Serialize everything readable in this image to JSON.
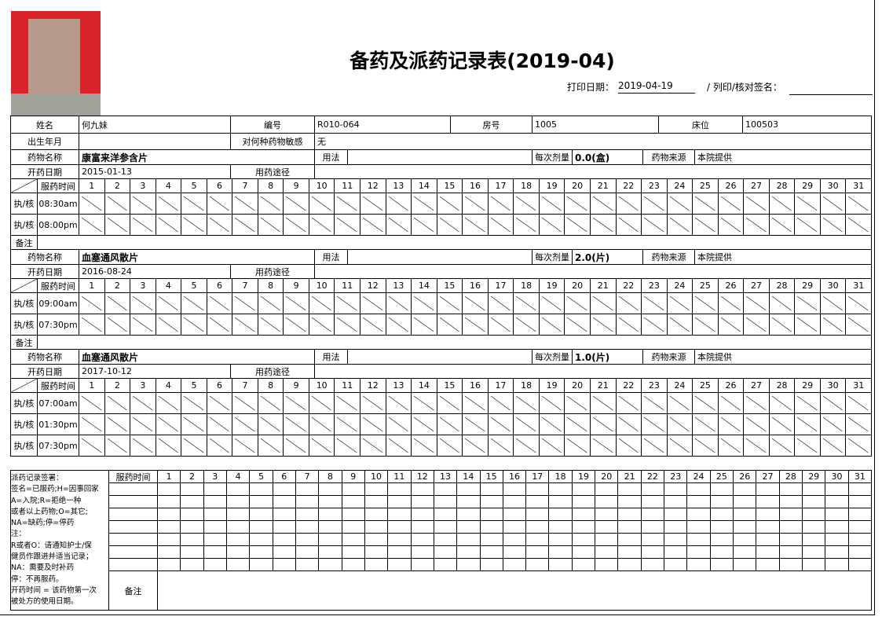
{
  "header": {
    "title": "备药及派药记录表(2019-04)",
    "print_date_label": "打印日期：",
    "print_date": "2019-04-19",
    "sign_label": "/ 列印/核对签名："
  },
  "patient": {
    "name_label": "姓名",
    "name": "何九妹",
    "id_label": "编号",
    "id": "R010-064",
    "room_label": "房号",
    "room": "1005",
    "bed_label": "床位",
    "bed": "100503",
    "birth_label": "出生年月",
    "allergy_label": "对何种药物敏感",
    "allergy": "无"
  },
  "labels": {
    "drug_name": "药物名称",
    "usage": "用法",
    "dose": "每次剂量",
    "source": "药物来源",
    "start_date": "开药日期",
    "route": "用药途径",
    "time": "服药时间",
    "exec": "执/核",
    "remark": "备注"
  },
  "days": [
    1,
    2,
    3,
    4,
    5,
    6,
    7,
    8,
    9,
    10,
    11,
    12,
    13,
    14,
    15,
    16,
    17,
    18,
    19,
    20,
    21,
    22,
    23,
    24,
    25,
    26,
    27,
    28,
    29,
    30,
    31
  ],
  "medications": [
    {
      "name": "康富来洋参含片",
      "dose": "0.0(盒)",
      "source": "本院提供",
      "start_date": "2015-01-13",
      "times": [
        "08:30am",
        "08:00pm"
      ]
    },
    {
      "name": "血塞通风散片",
      "dose": "2.0(片)",
      "source": "本院提供",
      "start_date": "2016-08-24",
      "times": [
        "09:00am",
        "07:30pm"
      ]
    },
    {
      "name": "血塞通风散片",
      "dose": "1.0(片)",
      "source": "本院提供",
      "start_date": "2017-10-12",
      "times": [
        "07:00am",
        "01:30pm",
        "07:30pm"
      ]
    }
  ],
  "signature": {
    "legend_lines": [
      "派药记录签署：",
      "签名=已服药;H=因事回家",
      "A=入院;R=拒绝一种",
      "或者以上药物;O=其它;",
      "NA=缺药;停=停药",
      "注：",
      "R或者O：请通知护士/保",
      "健员作跟进并适当记录；",
      "NA：需要及时补药",
      "停：不再服药。",
      "开药时间 = 该药物第一次",
      "被处方的使用日期。"
    ],
    "time_label": "服药时间",
    "remark_label": "备注"
  }
}
